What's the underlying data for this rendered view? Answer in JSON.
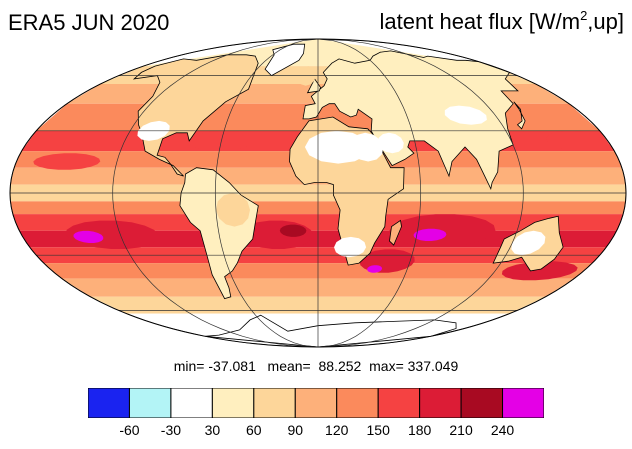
{
  "title": "ERA5 JUN 2020",
  "variable": {
    "prefix": "latent heat flux [W/m",
    "sup": "2",
    "suffix": ",up]"
  },
  "stats": {
    "min_label": "min=",
    "min": "-37.081",
    "mean_label": "mean=",
    "mean": "88.252",
    "max_label": "max=",
    "max": "337.049"
  },
  "colorbar": {
    "colors": [
      "#1a23f0",
      "#b3f4f6",
      "#ffffff",
      "#ffefbf",
      "#fdd69a",
      "#fdb07a",
      "#fb8a5c",
      "#f54242",
      "#dc1c36",
      "#a80a22",
      "#e400e6"
    ],
    "ticks": [
      "-60",
      "-30",
      "30",
      "60",
      "90",
      "120",
      "150",
      "180",
      "210",
      "240"
    ]
  },
  "map": {
    "projection": "Mollweide",
    "graticule_lon_step_deg": 60,
    "graticule_lat_step_deg": 30
  }
}
